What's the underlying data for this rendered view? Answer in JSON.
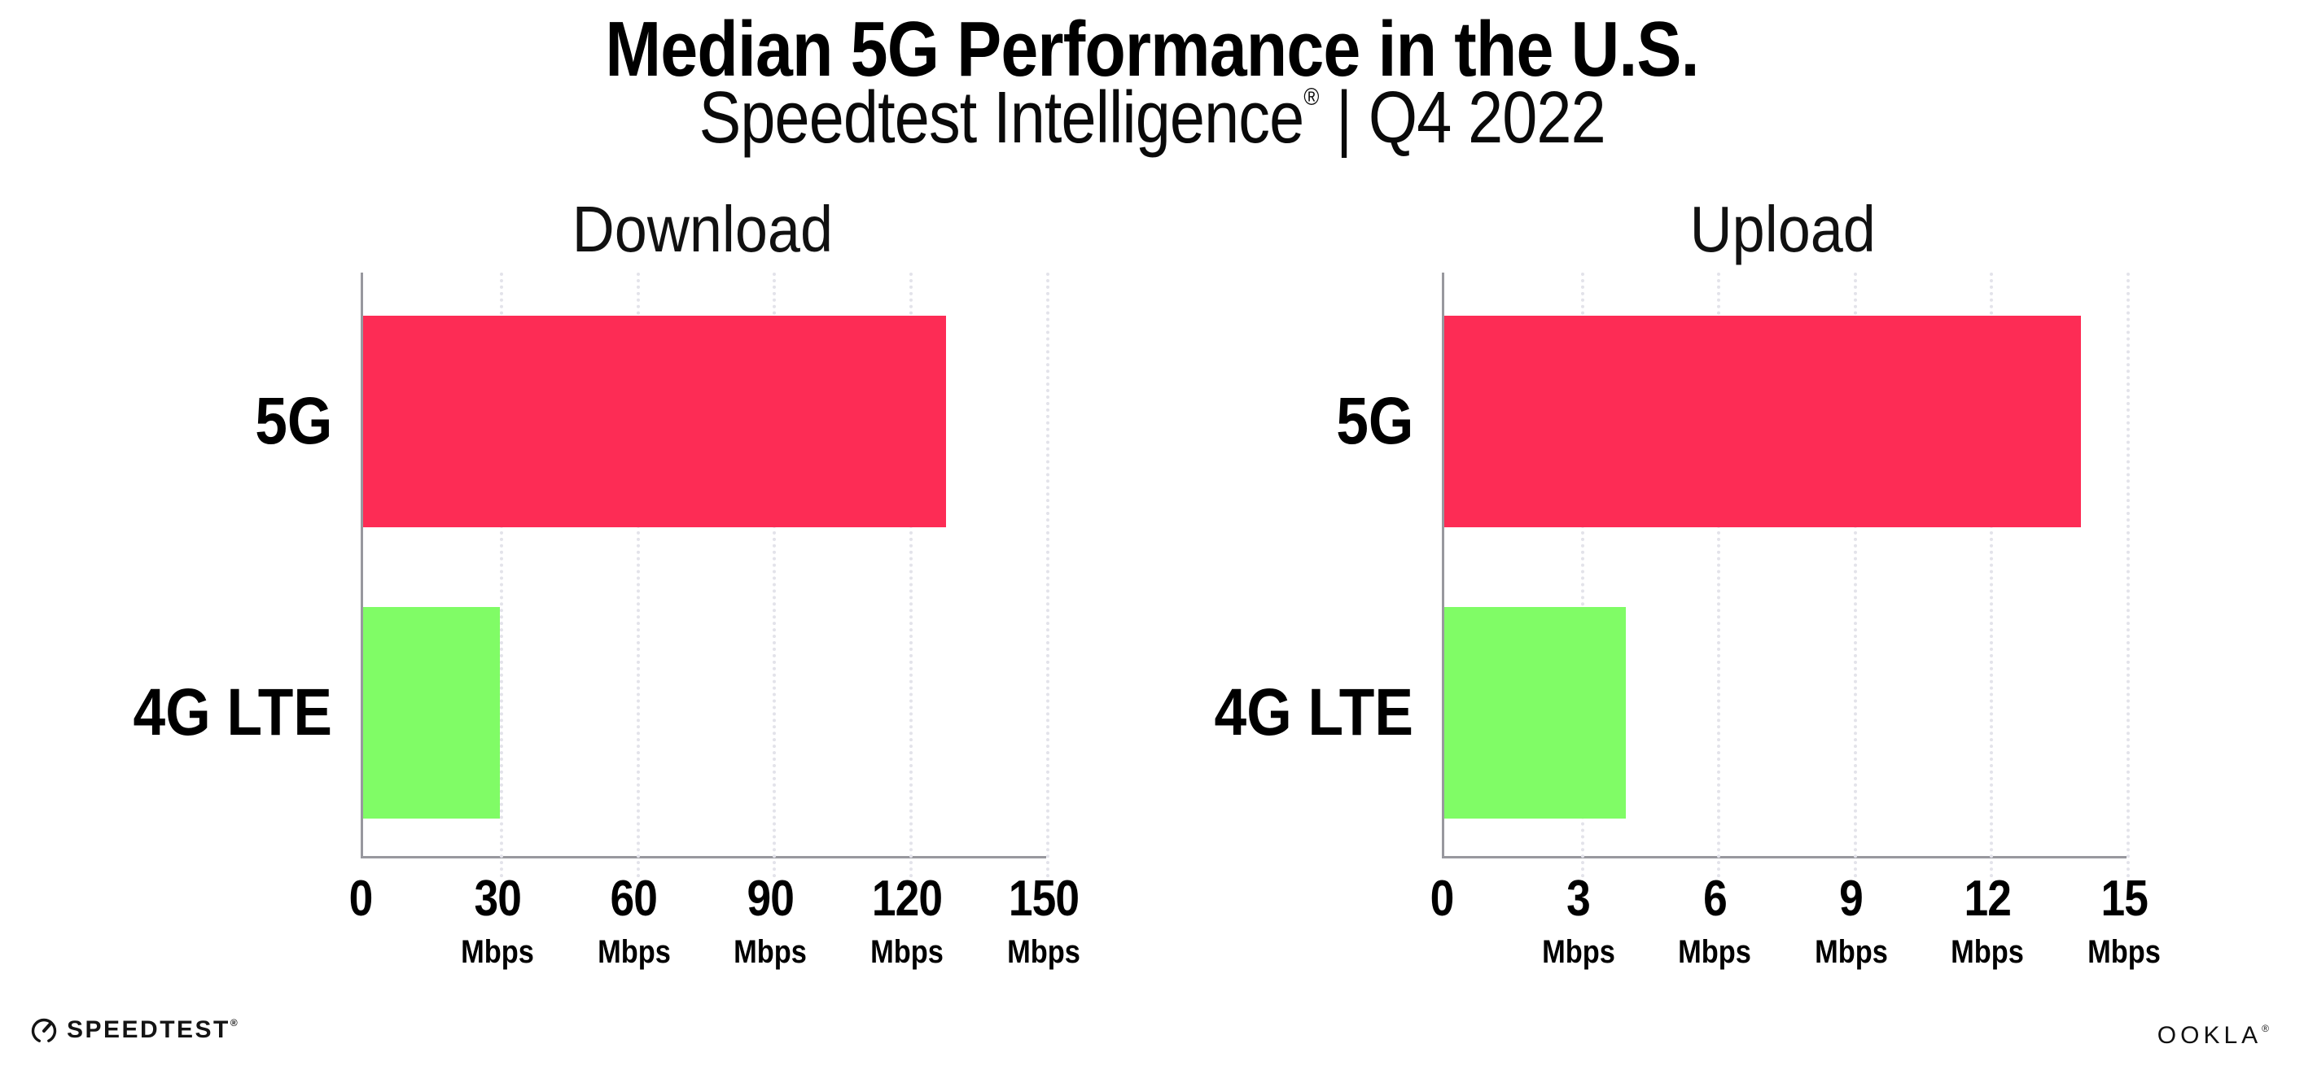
{
  "header": {
    "title": "Median 5G Performance in the U.S.",
    "subtitle_brand": "Speedtest Intelligence",
    "subtitle_reg": "®",
    "subtitle_rest": " | Q4 2022"
  },
  "colors": {
    "bar_5g": "#FD2C55",
    "bar_4g_lte": "#80FC66",
    "axis": "#98989E",
    "gridline": "#E3E3EA"
  },
  "chart_data": [
    {
      "type": "bar",
      "orientation": "horizontal",
      "title": "Download",
      "categories": [
        "5G",
        "4G LTE"
      ],
      "values": [
        128,
        30
      ],
      "unit": "Mbps",
      "xlim": [
        0,
        150
      ],
      "tick_step": 30,
      "grid": "vertical dotted at ticks",
      "legend": "none",
      "bar_colors": [
        "#FD2C55",
        "#80FC66"
      ],
      "tick_labels": [
        {
          "num": "0",
          "unit": ""
        },
        {
          "num": "30",
          "unit": "Mbps"
        },
        {
          "num": "60",
          "unit": "Mbps"
        },
        {
          "num": "90",
          "unit": "Mbps"
        },
        {
          "num": "120",
          "unit": "Mbps"
        },
        {
          "num": "150",
          "unit": "Mbps"
        }
      ]
    },
    {
      "type": "bar",
      "orientation": "horizontal",
      "title": "Upload",
      "categories": [
        "5G",
        "4G LTE"
      ],
      "values": [
        14,
        4
      ],
      "unit": "Mbps",
      "xlim": [
        0,
        15
      ],
      "tick_step": 3,
      "grid": "vertical dotted at ticks",
      "legend": "none",
      "bar_colors": [
        "#FD2C55",
        "#80FC66"
      ],
      "tick_labels": [
        {
          "num": "0",
          "unit": ""
        },
        {
          "num": "3",
          "unit": "Mbps"
        },
        {
          "num": "6",
          "unit": "Mbps"
        },
        {
          "num": "9",
          "unit": "Mbps"
        },
        {
          "num": "12",
          "unit": "Mbps"
        },
        {
          "num": "15",
          "unit": "Mbps"
        }
      ]
    }
  ],
  "footer": {
    "speedtest_wordmark": "SPEEDTEST",
    "speedtest_mark": "®",
    "ookla_wordmark": "OOKLA",
    "ookla_mark": "®"
  }
}
